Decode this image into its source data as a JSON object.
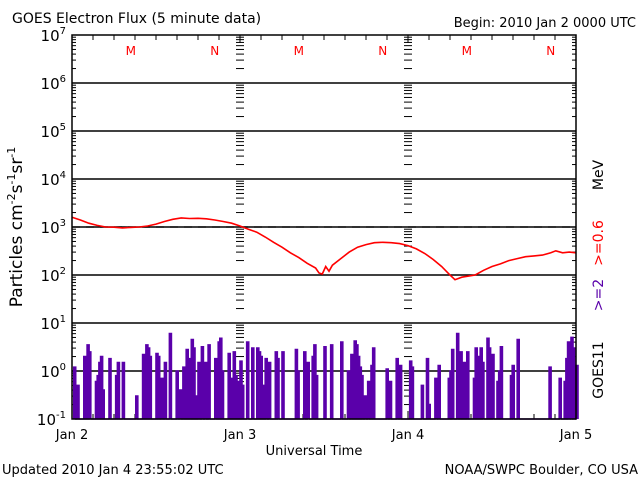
{
  "chart_data": {
    "type": "line",
    "title": "GOES Electron Flux (5 minute data)",
    "begin_label": "Begin: 2010 Jan 2 0000 UTC",
    "xlabel": "Universal Time",
    "ylabel": "Particles cm^-2 s^-1 sr^-1",
    "y_scale": "log",
    "ylim": [
      0.1,
      10000000
    ],
    "y_ticks": [
      {
        "exp": "-1",
        "base": "10"
      },
      {
        "exp": "0",
        "base": "10"
      },
      {
        "exp": "1",
        "base": "10"
      },
      {
        "exp": "2",
        "base": "10"
      },
      {
        "exp": "3",
        "base": "10"
      },
      {
        "exp": "4",
        "base": "10"
      },
      {
        "exp": "5",
        "base": "10"
      },
      {
        "exp": "6",
        "base": "10"
      },
      {
        "exp": "7",
        "base": "10"
      }
    ],
    "x_unit": "days since 2010 Jan 2 0000 UTC",
    "xlim": [
      0,
      3
    ],
    "x_tick_labels": [
      {
        "x": 0,
        "label": "Jan 2"
      },
      {
        "x": 1,
        "label": "Jan 3"
      },
      {
        "x": 2,
        "label": "Jan 4"
      },
      {
        "x": 3,
        "label": "Jan 5"
      }
    ],
    "local_time_markers": [
      {
        "x": 0.35,
        "label": "M",
        "meaning": "local midnight"
      },
      {
        "x": 0.85,
        "label": "N",
        "meaning": "local noon"
      },
      {
        "x": 1.35,
        "label": "M",
        "meaning": "local midnight"
      },
      {
        "x": 1.85,
        "label": "N",
        "meaning": "local noon"
      },
      {
        "x": 2.35,
        "label": "M",
        "meaning": "local midnight"
      },
      {
        "x": 2.85,
        "label": "N",
        "meaning": "local noon"
      }
    ],
    "threshold_line": {
      "y": 1000,
      "style": "dashed"
    },
    "right_labels": {
      "unit": "MeV",
      "series_high": ">=0.6",
      "series_low": ">=2",
      "satellite": "GOES11"
    },
    "series": [
      {
        "name": ">=0.6 MeV",
        "color": "#ff0000",
        "points": [
          [
            0.0,
            1600
          ],
          [
            0.05,
            1400
          ],
          [
            0.1,
            1200
          ],
          [
            0.15,
            1080
          ],
          [
            0.2,
            1000
          ],
          [
            0.25,
            990
          ],
          [
            0.3,
            960
          ],
          [
            0.35,
            980
          ],
          [
            0.4,
            1000
          ],
          [
            0.45,
            1050
          ],
          [
            0.5,
            1150
          ],
          [
            0.55,
            1300
          ],
          [
            0.6,
            1450
          ],
          [
            0.65,
            1550
          ],
          [
            0.7,
            1500
          ],
          [
            0.75,
            1520
          ],
          [
            0.8,
            1480
          ],
          [
            0.85,
            1400
          ],
          [
            0.9,
            1300
          ],
          [
            0.95,
            1200
          ],
          [
            1.0,
            1050
          ],
          [
            1.05,
            900
          ],
          [
            1.1,
            780
          ],
          [
            1.15,
            620
          ],
          [
            1.2,
            480
          ],
          [
            1.25,
            380
          ],
          [
            1.3,
            290
          ],
          [
            1.35,
            230
          ],
          [
            1.4,
            175
          ],
          [
            1.45,
            140
          ],
          [
            1.47,
            110
          ],
          [
            1.49,
            105
          ],
          [
            1.51,
            150
          ],
          [
            1.53,
            120
          ],
          [
            1.55,
            160
          ],
          [
            1.6,
            220
          ],
          [
            1.65,
            300
          ],
          [
            1.7,
            380
          ],
          [
            1.75,
            430
          ],
          [
            1.8,
            470
          ],
          [
            1.85,
            480
          ],
          [
            1.9,
            470
          ],
          [
            1.95,
            450
          ],
          [
            2.0,
            410
          ],
          [
            2.05,
            350
          ],
          [
            2.1,
            280
          ],
          [
            2.15,
            210
          ],
          [
            2.2,
            150
          ],
          [
            2.25,
            100
          ],
          [
            2.28,
            80
          ],
          [
            2.32,
            90
          ],
          [
            2.36,
            95
          ],
          [
            2.4,
            100
          ],
          [
            2.45,
            125
          ],
          [
            2.5,
            150
          ],
          [
            2.55,
            170
          ],
          [
            2.6,
            200
          ],
          [
            2.65,
            220
          ],
          [
            2.7,
            240
          ],
          [
            2.75,
            250
          ],
          [
            2.8,
            260
          ],
          [
            2.85,
            290
          ],
          [
            2.88,
            320
          ],
          [
            2.92,
            290
          ],
          [
            2.96,
            300
          ],
          [
            3.0,
            290
          ]
        ]
      },
      {
        "name": ">=2 MeV",
        "color": "#5a00aa",
        "baseline": 0.1,
        "note": "spiky data; approximate peak values per interval",
        "points": [
          [
            0.01,
            1.2
          ],
          [
            0.03,
            0.5
          ],
          [
            0.05,
            0.1
          ],
          [
            0.07,
            2.0
          ],
          [
            0.08,
            0.5
          ],
          [
            0.09,
            3.5
          ],
          [
            0.1,
            2.5
          ],
          [
            0.11,
            0.1
          ],
          [
            0.14,
            0.6
          ],
          [
            0.15,
            0.8
          ],
          [
            0.16,
            1.5
          ],
          [
            0.17,
            2.0
          ],
          [
            0.18,
            0.4
          ],
          [
            0.2,
            0.1
          ],
          [
            0.22,
            1.8
          ],
          [
            0.24,
            0.1
          ],
          [
            0.26,
            0.8
          ],
          [
            0.27,
            1.5
          ],
          [
            0.29,
            0.1
          ],
          [
            0.3,
            1.5
          ],
          [
            0.32,
            0.1
          ],
          [
            0.36,
            0.1
          ],
          [
            0.38,
            0.3
          ],
          [
            0.4,
            0.1
          ],
          [
            0.42,
            2.2
          ],
          [
            0.43,
            1.0
          ],
          [
            0.44,
            3.5
          ],
          [
            0.45,
            3.0
          ],
          [
            0.46,
            2.0
          ],
          [
            0.48,
            0.1
          ],
          [
            0.5,
            2.3
          ],
          [
            0.51,
            2.0
          ],
          [
            0.53,
            0.7
          ],
          [
            0.55,
            1.5
          ],
          [
            0.57,
            0.1
          ],
          [
            0.58,
            6.0
          ],
          [
            0.6,
            0.1
          ],
          [
            0.62,
            1.0
          ],
          [
            0.64,
            0.4
          ],
          [
            0.66,
            1.2
          ],
          [
            0.67,
            0.5
          ],
          [
            0.68,
            2.8
          ],
          [
            0.7,
            1.8
          ],
          [
            0.71,
            4.5
          ],
          [
            0.72,
            3.0
          ],
          [
            0.73,
            0.3
          ],
          [
            0.75,
            1.5
          ],
          [
            0.77,
            3.2
          ],
          [
            0.79,
            1.5
          ],
          [
            0.81,
            3.5
          ],
          [
            0.83,
            0.1
          ],
          [
            0.85,
            1.8
          ],
          [
            0.87,
            4.0
          ],
          [
            0.88,
            4.8
          ],
          [
            0.89,
            1.0
          ],
          [
            0.91,
            0.1
          ],
          [
            0.93,
            2.3
          ],
          [
            0.94,
            0.7
          ],
          [
            0.95,
            0.7
          ],
          [
            0.96,
            2.5
          ],
          [
            0.97,
            0.8
          ],
          [
            0.98,
            0.6
          ],
          [
            0.99,
            0.5
          ],
          [
            1.0,
            1.6
          ],
          [
            1.01,
            0.5
          ],
          [
            1.03,
            0.1
          ],
          [
            1.04,
            4.0
          ],
          [
            1.05,
            0.1
          ],
          [
            1.07,
            3.0
          ],
          [
            1.08,
            0.1
          ],
          [
            1.1,
            3.0
          ],
          [
            1.11,
            2.5
          ],
          [
            1.12,
            2.0
          ],
          [
            1.13,
            0.5
          ],
          [
            1.15,
            1.8
          ],
          [
            1.17,
            1.5
          ],
          [
            1.19,
            0.1
          ],
          [
            1.21,
            2.5
          ],
          [
            1.22,
            1.8
          ],
          [
            1.23,
            0.1
          ],
          [
            1.25,
            2.5
          ],
          [
            1.27,
            0.1
          ],
          [
            1.29,
            0.1
          ],
          [
            1.33,
            2.8
          ],
          [
            1.34,
            1.0
          ],
          [
            1.36,
            0.1
          ],
          [
            1.38,
            2.5
          ],
          [
            1.4,
            1.5
          ],
          [
            1.41,
            0.1
          ],
          [
            1.43,
            2.0
          ],
          [
            1.44,
            3.5
          ],
          [
            1.45,
            0.8
          ],
          [
            1.47,
            0.1
          ],
          [
            1.48,
            0.1
          ],
          [
            1.5,
            3.2
          ],
          [
            1.52,
            0.1
          ],
          [
            1.54,
            3.5
          ],
          [
            1.56,
            0.1
          ],
          [
            1.58,
            0.1
          ],
          [
            1.6,
            4.0
          ],
          [
            1.62,
            0.1
          ],
          [
            1.64,
            1.0
          ],
          [
            1.66,
            2.2
          ],
          [
            1.67,
            1.0
          ],
          [
            1.68,
            4.2
          ],
          [
            1.69,
            3.5
          ],
          [
            1.7,
            2.0
          ],
          [
            1.71,
            1.2
          ],
          [
            1.72,
            0.8
          ],
          [
            1.74,
            0.3
          ],
          [
            1.76,
            0.6
          ],
          [
            1.78,
            1.3
          ],
          [
            1.79,
            3.0
          ],
          [
            1.81,
            0.1
          ],
          [
            1.83,
            0.1
          ],
          [
            1.85,
            0.1
          ],
          [
            1.87,
            1.1
          ],
          [
            1.89,
            0.6
          ],
          [
            1.91,
            0.1
          ],
          [
            1.93,
            1.8
          ],
          [
            1.95,
            1.3
          ],
          [
            1.97,
            0.1
          ],
          [
            1.99,
            0.1
          ],
          [
            2.01,
            1.6
          ],
          [
            2.02,
            1.2
          ],
          [
            2.04,
            0.1
          ],
          [
            2.06,
            0.1
          ],
          [
            2.08,
            0.5
          ],
          [
            2.09,
            0.1
          ],
          [
            2.11,
            1.8
          ],
          [
            2.12,
            0.2
          ],
          [
            2.14,
            0.1
          ],
          [
            2.16,
            0.7
          ],
          [
            2.17,
            0.1
          ],
          [
            2.18,
            1.3
          ],
          [
            2.2,
            0.1
          ],
          [
            2.22,
            0.1
          ],
          [
            2.24,
            0.7
          ],
          [
            2.25,
            1.0
          ],
          [
            2.26,
            2.8
          ],
          [
            2.27,
            0.1
          ],
          [
            2.29,
            6.0
          ],
          [
            2.31,
            2.5
          ],
          [
            2.32,
            1.5
          ],
          [
            2.33,
            1.0
          ],
          [
            2.34,
            1.5
          ],
          [
            2.35,
            2.5
          ],
          [
            2.37,
            0.1
          ],
          [
            2.39,
            0.7
          ],
          [
            2.4,
            3.0
          ],
          [
            2.41,
            1.8
          ],
          [
            2.42,
            2.0
          ],
          [
            2.43,
            3.0
          ],
          [
            2.44,
            1.5
          ],
          [
            2.45,
            0.1
          ],
          [
            2.47,
            4.8
          ],
          [
            2.48,
            3.0
          ],
          [
            2.49,
            1.2
          ],
          [
            2.5,
            2.2
          ],
          [
            2.51,
            0.1
          ],
          [
            2.53,
            0.6
          ],
          [
            2.54,
            1.0
          ],
          [
            2.55,
            3.2
          ],
          [
            2.57,
            0.1
          ],
          [
            2.59,
            0.1
          ],
          [
            2.61,
            0.8
          ],
          [
            2.62,
            1.3
          ],
          [
            2.63,
            0.1
          ],
          [
            2.65,
            4.5
          ],
          [
            2.67,
            0.1
          ],
          [
            2.69,
            0.1
          ],
          [
            2.71,
            0.1
          ],
          [
            2.73,
            0.1
          ],
          [
            2.75,
            0.1
          ],
          [
            2.77,
            0.1
          ],
          [
            2.79,
            0.1
          ],
          [
            2.81,
            0.1
          ],
          [
            2.84,
            1.2
          ],
          [
            2.86,
            0.1
          ],
          [
            2.88,
            0.1
          ],
          [
            2.9,
            0.7
          ],
          [
            2.91,
            0.1
          ],
          [
            2.93,
            0.6
          ],
          [
            2.94,
            1.8
          ],
          [
            2.95,
            4.0
          ],
          [
            2.96,
            0.1
          ],
          [
            2.97,
            5.0
          ],
          [
            2.98,
            3.0
          ],
          [
            2.99,
            0.1
          ],
          [
            3.0,
            1.3
          ]
        ]
      }
    ]
  },
  "footer": {
    "updated": "Updated 2010 Jan  4 23:55:02 UTC",
    "credit": "NOAA/SWPC Boulder, CO USA"
  }
}
